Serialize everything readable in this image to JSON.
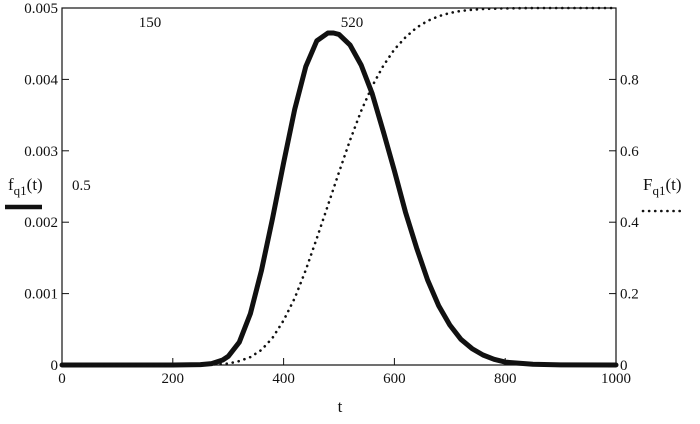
{
  "chart_data": {
    "type": "line",
    "xlabel": "t",
    "x_ticks": [
      "0",
      "200",
      "400",
      "600",
      "800",
      "1000"
    ],
    "xlim": [
      0,
      1000
    ],
    "y_left_ticks": [
      "0",
      "0.001",
      "0.002",
      "0.003",
      "0.004",
      "0.005"
    ],
    "ylim_left": [
      0,
      0.005
    ],
    "y_right_ticks": [
      "0",
      "0.2",
      "0.4",
      "0.6",
      "0.8"
    ],
    "ylim_right": [
      0,
      1
    ],
    "left_label": {
      "main": "f",
      "sub": "q1",
      "arg": "(t)"
    },
    "right_label": {
      "main": "F",
      "sub": "q1",
      "arg": "(t)"
    },
    "annotations": {
      "top_left": "150",
      "top_mid": "520",
      "left_mid": "0.5"
    },
    "grid": false,
    "series": [
      {
        "style": "solid-thick",
        "axis": "left",
        "color": "#111111",
        "x": [
          0,
          100,
          200,
          250,
          270,
          290,
          300,
          320,
          340,
          360,
          380,
          400,
          420,
          440,
          460,
          480,
          490,
          500,
          520,
          540,
          560,
          580,
          600,
          620,
          640,
          660,
          680,
          700,
          720,
          740,
          760,
          780,
          800,
          850,
          900,
          1000
        ],
        "y": [
          0,
          0,
          0,
          5e-06,
          2e-05,
          7e-05,
          0.00012,
          0.00032,
          0.00072,
          0.00132,
          0.00205,
          0.00283,
          0.00358,
          0.00418,
          0.00454,
          0.00465,
          0.00465,
          0.00463,
          0.00448,
          0.0042,
          0.0038,
          0.00327,
          0.00272,
          0.00214,
          0.00164,
          0.00119,
          0.00083,
          0.00056,
          0.00036,
          0.00023,
          0.00014,
          8e-05,
          4e-05,
          1e-05,
          2e-06,
          0
        ]
      },
      {
        "style": "dotted",
        "axis": "right",
        "color": "#111111",
        "x": [
          0,
          200,
          280,
          300,
          320,
          340,
          360,
          380,
          400,
          420,
          440,
          460,
          480,
          500,
          520,
          540,
          560,
          580,
          600,
          620,
          640,
          660,
          680,
          700,
          720,
          740,
          760,
          780,
          800,
          850,
          900,
          1000
        ],
        "y": [
          0,
          0,
          0.002,
          0.004,
          0.011,
          0.022,
          0.042,
          0.076,
          0.125,
          0.187,
          0.266,
          0.355,
          0.447,
          0.54,
          0.63,
          0.712,
          0.781,
          0.838,
          0.884,
          0.918,
          0.945,
          0.964,
          0.977,
          0.986,
          0.992,
          0.995,
          0.997,
          0.998,
          0.999,
          1.0,
          1.0,
          1.0
        ]
      }
    ]
  },
  "colors": {
    "curve": "#111111",
    "axis": "#111111",
    "background": "#ffffff"
  }
}
